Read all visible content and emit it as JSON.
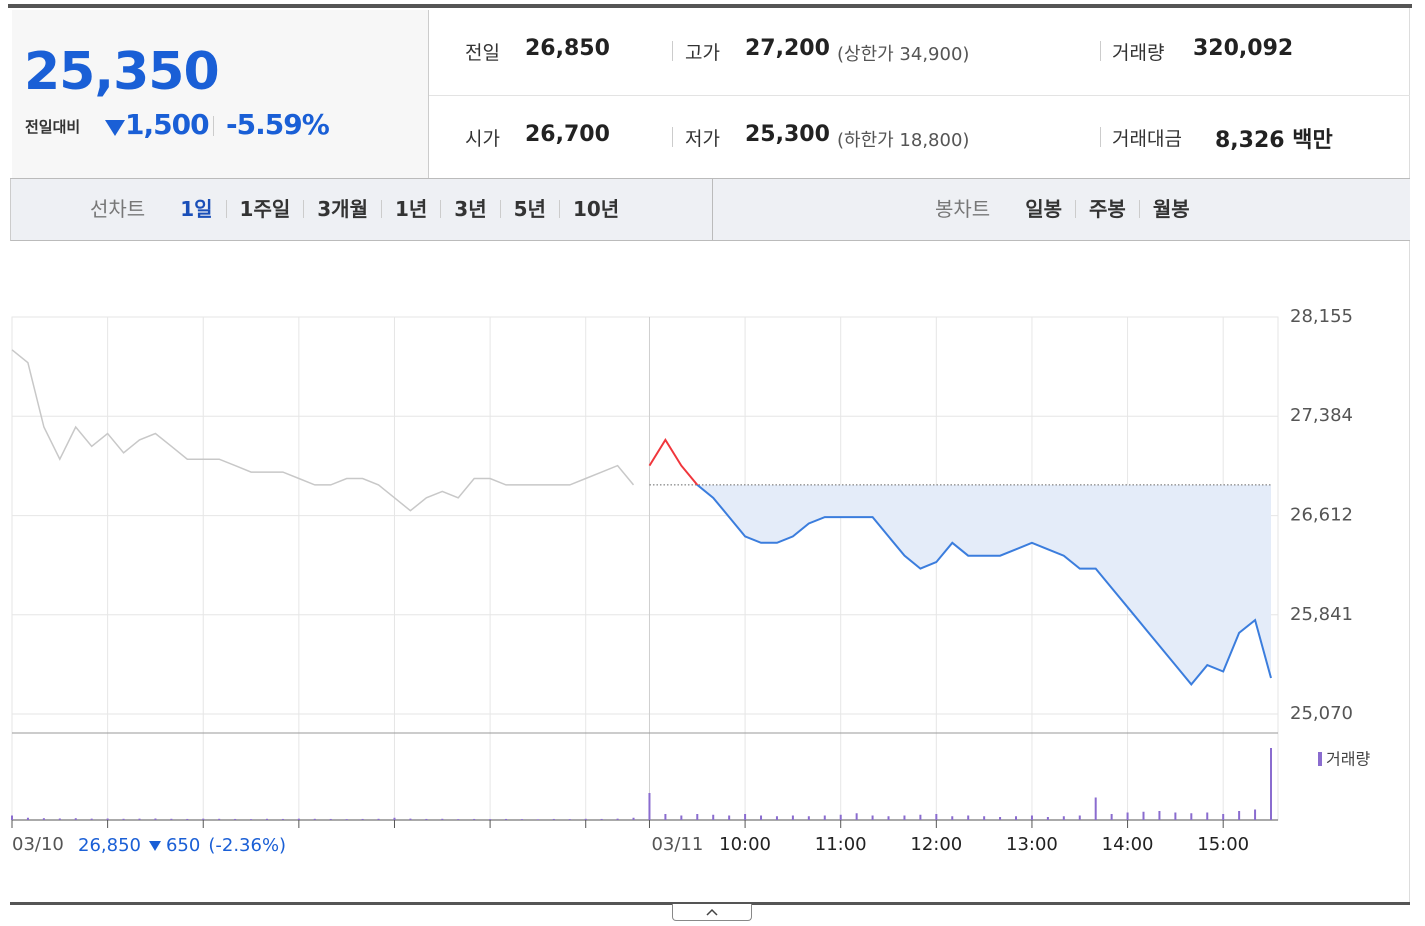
{
  "quote": {
    "price": "25,350",
    "change_label": "전일대비",
    "change": "1,500",
    "change_rate": "-5.59%"
  },
  "summary": [
    {
      "label": "전일",
      "value": "26,850"
    },
    {
      "label": "고가",
      "value": "27,200",
      "note": "(상한가 34,900)"
    },
    {
      "label": "거래량",
      "value": "320,092"
    },
    {
      "label": "시가",
      "value": "26,700"
    },
    {
      "label": "저가",
      "value": "25,300",
      "note": "(하한가 18,800)"
    },
    {
      "label": "거래대금",
      "value": "8,326 백만"
    }
  ],
  "tabs": {
    "line_label": "선차트",
    "line": [
      "1일",
      "1주일",
      "3개월",
      "1년",
      "3년",
      "5년",
      "10년"
    ],
    "candle_label": "봉차트",
    "candle": [
      "일봉",
      "주봉",
      "월봉"
    ]
  },
  "prev_day": {
    "close": "26,850",
    "change": "650",
    "rate": "(-2.36%)"
  },
  "chart_data": {
    "type": "line",
    "categories": [
      "03/10",
      null,
      null,
      null,
      null,
      null,
      null,
      null,
      null,
      null,
      null,
      null,
      null,
      null,
      null,
      null,
      null,
      null,
      null,
      null,
      null,
      null,
      null,
      null,
      null,
      null,
      null,
      null,
      null,
      null,
      null,
      null,
      null,
      null,
      null,
      null,
      null,
      null,
      null,
      null,
      "03/11",
      null,
      null,
      null,
      null,
      null,
      "10:00",
      null,
      null,
      null,
      null,
      null,
      "11:00",
      null,
      null,
      null,
      null,
      null,
      "12:00",
      null,
      null,
      null,
      null,
      null,
      "13:00",
      null,
      null,
      null,
      null,
      null,
      "14:00",
      null,
      null,
      null,
      null,
      null,
      "15:00",
      null,
      null,
      null
    ],
    "series": [
      {
        "color": "#c8c8c8",
        "values": [
          27900,
          27800,
          27300,
          27050,
          27300,
          27150,
          27250,
          27100,
          27200,
          27250,
          27150,
          27050,
          27050,
          27050,
          27000,
          26950,
          26950,
          26950,
          26900,
          26850,
          26850,
          26900,
          26900,
          26850,
          26750,
          26650,
          26750,
          26800,
          26750,
          26900,
          26900,
          26850,
          26850,
          26850,
          26850,
          26850,
          26900,
          26950,
          27000,
          26850,
          null,
          null,
          null,
          null,
          null,
          null,
          null,
          null,
          null,
          null,
          null,
          null,
          null,
          null,
          null,
          null,
          null,
          null,
          null,
          null,
          null,
          null,
          null,
          null,
          null,
          null,
          null,
          null,
          null,
          null,
          null,
          null,
          null,
          null,
          null,
          null,
          null,
          null,
          null,
          null
        ]
      },
      {
        "color": "#3b7ddd",
        "up_color": "#f0363c",
        "values": [
          null,
          null,
          null,
          null,
          null,
          null,
          null,
          null,
          null,
          null,
          null,
          null,
          null,
          null,
          null,
          null,
          null,
          null,
          null,
          null,
          null,
          null,
          null,
          null,
          null,
          null,
          null,
          null,
          null,
          null,
          null,
          null,
          null,
          null,
          null,
          null,
          null,
          null,
          null,
          null,
          27000,
          27200,
          27000,
          26850,
          26750,
          26600,
          26450,
          26400,
          26400,
          26450,
          26550,
          26600,
          26600,
          26600,
          26600,
          26450,
          26300,
          26200,
          26250,
          26400,
          26300,
          26300,
          26300,
          26350,
          26400,
          26350,
          26300,
          26200,
          26200,
          26050,
          25900,
          25750,
          25600,
          25450,
          25300,
          25450,
          25400,
          25700,
          25800,
          25350
        ]
      }
    ],
    "baseline": 26850,
    "area_color": "#e4ecf9",
    "ylim": [
      25070,
      28155
    ],
    "yticks": [
      {
        "value": 28155,
        "label": "28,155"
      },
      {
        "value": 27384,
        "label": "27,384"
      },
      {
        "value": 26612,
        "label": "26,612"
      },
      {
        "value": 25841,
        "label": "25,841"
      },
      {
        "value": 25070,
        "label": "25,070"
      }
    ],
    "grid": true,
    "volume": {
      "name": "거래량",
      "color": "#8a6ccf",
      "ylim": [
        0,
        50000
      ],
      "values": [
        3000,
        1500,
        1200,
        1000,
        1200,
        900,
        1000,
        800,
        900,
        1000,
        800,
        700,
        900,
        800,
        700,
        600,
        800,
        700,
        900,
        800,
        700,
        600,
        700,
        800,
        1500,
        900,
        700,
        800,
        600,
        700,
        600,
        700,
        600,
        500,
        700,
        600,
        800,
        700,
        900,
        1500,
        18000,
        4000,
        3000,
        4000,
        3500,
        3000,
        4000,
        3000,
        2500,
        3000,
        2500,
        3000,
        3500,
        4500,
        3000,
        2500,
        3000,
        3500,
        4000,
        2500,
        3000,
        2500,
        2000,
        2500,
        3000,
        2000,
        2500,
        3000,
        15000,
        4000,
        5000,
        5500,
        6000,
        5000,
        4500,
        5000,
        4000,
        6000,
        7000,
        48000
      ]
    }
  }
}
